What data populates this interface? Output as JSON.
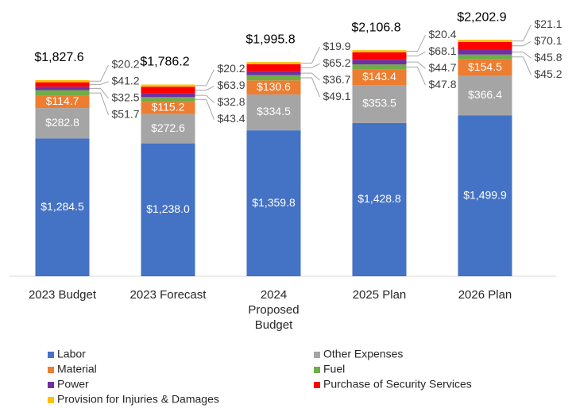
{
  "chart_data": {
    "type": "stacked_bar",
    "categories": [
      "2023 Budget",
      "2023 Forecast",
      "2024\nProposed\nBudget",
      "2025 Plan",
      "2026 Plan"
    ],
    "series": [
      {
        "name": "Labor",
        "color": "#4472c4",
        "values": [
          1284.5,
          1238.0,
          1359.8,
          1428.8,
          1499.9
        ],
        "value_labels": [
          "$1,284.5",
          "$1,238.0",
          "$1,359.8",
          "$1,428.8",
          "$1,499.9"
        ]
      },
      {
        "name": "Other Expenses",
        "color": "#a5a5a5",
        "values": [
          282.8,
          272.6,
          334.5,
          353.5,
          366.4
        ],
        "value_labels": [
          "$282.8",
          "$272.6",
          "$334.5",
          "$353.5",
          "$366.4"
        ]
      },
      {
        "name": "Material",
        "color": "#ed7d31",
        "values": [
          114.7,
          115.2,
          130.6,
          143.4,
          154.5
        ],
        "value_labels": [
          "$114.7",
          "$115.2",
          "$130.6",
          "$143.4",
          "$154.5"
        ]
      },
      {
        "name": "Fuel",
        "color": "#70ad47",
        "values": [
          51.7,
          43.4,
          49.1,
          47.8,
          45.2
        ],
        "value_labels": [
          "$51.7",
          "$43.4",
          "$49.1",
          "$47.8",
          "$45.2"
        ]
      },
      {
        "name": "Power",
        "color": "#7030a0",
        "values": [
          32.5,
          32.8,
          36.7,
          44.7,
          45.8
        ],
        "value_labels": [
          "$32.5",
          "$32.8",
          "$36.7",
          "$44.7",
          "$45.8"
        ]
      },
      {
        "name": "Purchase of Security Services",
        "color": "#ff0000",
        "values": [
          41.2,
          63.9,
          65.2,
          68.1,
          70.1
        ],
        "value_labels": [
          "$41.2",
          "$63.9",
          "$65.2",
          "$68.1",
          "$70.1"
        ]
      },
      {
        "name": "Provision for Injuries & Damages",
        "color": "#ffc000",
        "values": [
          20.2,
          20.2,
          19.9,
          20.4,
          21.1
        ],
        "value_labels": [
          "$20.2",
          "$20.2",
          "$19.9",
          "$20.4",
          "$21.1"
        ]
      }
    ],
    "totals": [
      1827.6,
      1786.2,
      1995.8,
      2106.8,
      2202.9
    ],
    "total_labels": [
      "$1,827.6",
      "$1,786.2",
      "$1,995.8",
      "$2,106.8",
      "$2,202.9"
    ],
    "ylim": [
      0,
      2500
    ]
  }
}
